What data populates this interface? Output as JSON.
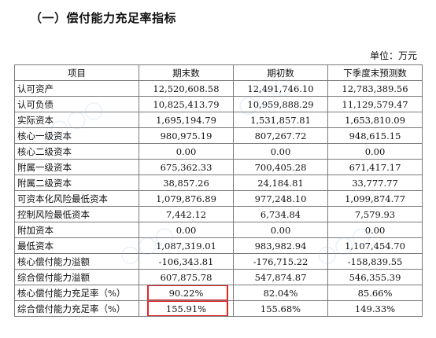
{
  "title": "（一）偿付能力充足率指标",
  "unit": "单位：万元",
  "table": {
    "headers": [
      "项目",
      "期末数",
      "期初数",
      "下季度末预测数"
    ],
    "rows": [
      {
        "label": "认可资产",
        "indent": 0,
        "end": "12,520,608.58",
        "begin": "12,491,746.10",
        "forecast": "12,783,389.56"
      },
      {
        "label": "认可负债",
        "indent": 0,
        "end": "10,825,413.79",
        "begin": "10,959,888.29",
        "forecast": "11,129,579.47"
      },
      {
        "label": "实际资本",
        "indent": 0,
        "end": "1,695,194.79",
        "begin": "1,531,857.81",
        "forecast": "1,653,810.09"
      },
      {
        "label": "核心一级资本",
        "indent": 1,
        "end": "980,975.19",
        "begin": "807,267.72",
        "forecast": "948,615.15"
      },
      {
        "label": "核心二级资本",
        "indent": 1,
        "end": "0.00",
        "begin": "0.00",
        "forecast": "0.00"
      },
      {
        "label": "附属一级资本",
        "indent": 1,
        "end": "675,362.33",
        "begin": "700,405.28",
        "forecast": "671,417.17"
      },
      {
        "label": "附属二级资本",
        "indent": 1,
        "end": "38,857.26",
        "begin": "24,184.81",
        "forecast": "33,777.77"
      },
      {
        "label": "可资本化风险最低资本",
        "indent": 2,
        "end": "1,079,876.89",
        "begin": "977,248.10",
        "forecast": "1,099,874.77"
      },
      {
        "label": "控制风险最低资本",
        "indent": 3,
        "end": "7,442.12",
        "begin": "6,734.84",
        "forecast": "7,579.93"
      },
      {
        "label": "附加资本",
        "indent": 3,
        "end": "0.00",
        "begin": "0.00",
        "forecast": "0.00"
      },
      {
        "label": "最低资本",
        "indent": 0,
        "end": "1,087,319.01",
        "begin": "983,982.94",
        "forecast": "1,107,454.70"
      },
      {
        "label": "核心偿付能力溢额",
        "indent": 0,
        "end": "-106,343.81",
        "begin": "-176,715.22",
        "forecast": "-158,839.55"
      },
      {
        "label": "综合偿付能力溢额",
        "indent": 0,
        "end": "607,875.78",
        "begin": "547,874.87",
        "forecast": "546,355.39"
      },
      {
        "label": "核心偿付能力充足率（%）",
        "indent": 0,
        "end": "90.22%",
        "begin": "82.04%",
        "forecast": "85.66%",
        "highlight": true
      },
      {
        "label": "综合偿付能力充足率（%）",
        "indent": 0,
        "end": "155.91%",
        "begin": "155.68%",
        "forecast": "149.33%",
        "highlight": true
      }
    ]
  },
  "colors": {
    "border": "#7a7a7a",
    "highlight_box": "#e0242a"
  }
}
